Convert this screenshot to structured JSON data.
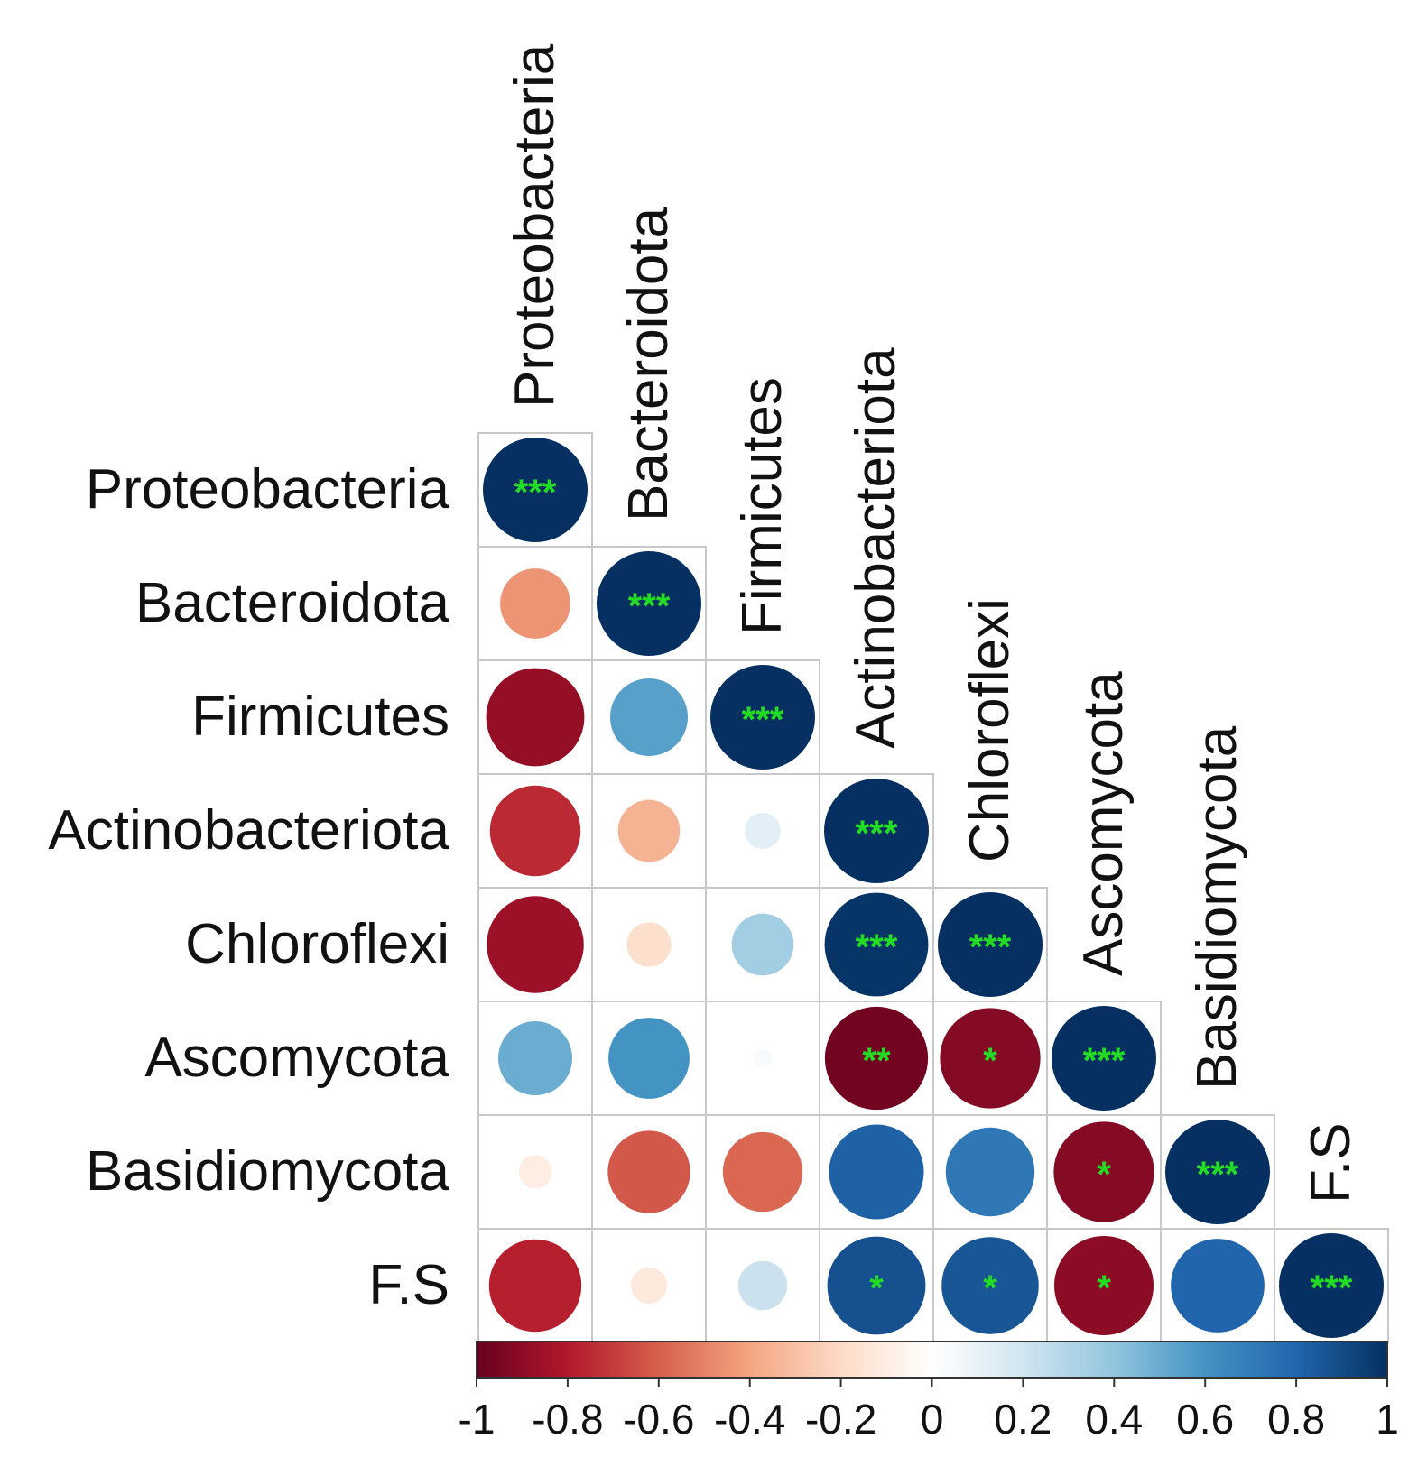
{
  "chart_data": {
    "type": "heatmap",
    "subtype": "correlation-circle-lower-triangle",
    "title": "",
    "variables": [
      "Proteobacteria",
      "Bacteroidota",
      "Firmicutes",
      "Actinobacteriota",
      "Chloroflexi",
      "Ascomycota",
      "Basidiomycota",
      "F.S"
    ],
    "matrix": [
      [
        1.0,
        null,
        null,
        null,
        null,
        null,
        null,
        null
      ],
      [
        -0.45,
        1.0,
        null,
        null,
        null,
        null,
        null,
        null
      ],
      [
        -0.88,
        0.55,
        1.0,
        null,
        null,
        null,
        null,
        null
      ],
      [
        -0.75,
        -0.35,
        0.12,
        1.0,
        null,
        null,
        null,
        null
      ],
      [
        -0.86,
        -0.18,
        0.35,
        0.98,
        1.0,
        null,
        null,
        null
      ],
      [
        0.5,
        0.6,
        0.03,
        -0.97,
        -0.92,
        1.0,
        null,
        null
      ],
      [
        -0.1,
        -0.62,
        -0.58,
        0.82,
        0.72,
        -0.92,
        1.0,
        null
      ],
      [
        -0.78,
        -0.12,
        0.22,
        0.88,
        0.86,
        -0.9,
        0.8,
        1.0
      ]
    ],
    "significance": [
      [
        "***",
        "",
        "",
        "",
        "",
        "",
        "",
        ""
      ],
      [
        "",
        "***",
        "",
        "",
        "",
        "",
        "",
        ""
      ],
      [
        "",
        "",
        "***",
        "",
        "",
        "",
        "",
        ""
      ],
      [
        "",
        "",
        "",
        "***",
        "",
        "",
        "",
        ""
      ],
      [
        "",
        "",
        "",
        "***",
        "***",
        "",
        "",
        ""
      ],
      [
        "",
        "",
        "",
        "**",
        "*",
        "***",
        "",
        ""
      ],
      [
        "",
        "",
        "",
        "",
        "",
        "*",
        "***",
        ""
      ],
      [
        "",
        "",
        "",
        "*",
        "*",
        "*",
        "",
        "***"
      ]
    ],
    "colorbar": {
      "range": [
        -1,
        1
      ],
      "ticks": [
        "-1",
        "-0.8",
        "-0.6",
        "-0.4",
        "-0.2",
        "0",
        "0.2",
        "0.4",
        "0.6",
        "0.8",
        "1"
      ],
      "colors": [
        "#67001f",
        "#b2182b",
        "#d6604d",
        "#f4a582",
        "#fddbc7",
        "#ffffff",
        "#d1e5f0",
        "#92c5de",
        "#4393c3",
        "#2166ac",
        "#053061"
      ]
    },
    "significance_color": "#22dd22",
    "grid": true
  }
}
